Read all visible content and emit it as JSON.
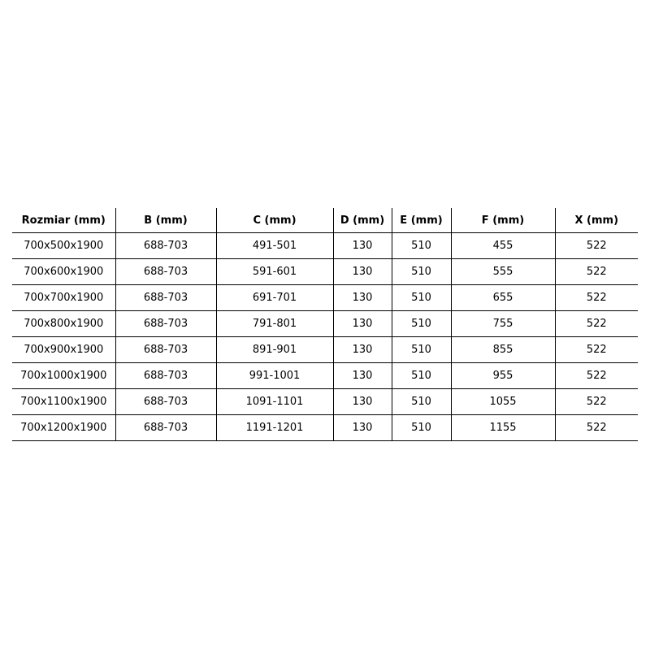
{
  "table": {
    "headers": [
      "Rozmiar (mm)",
      "B (mm)",
      "C (mm)",
      "D (mm)",
      "E (mm)",
      "F (mm)",
      "X (mm)"
    ],
    "rows": [
      [
        "700x500x1900",
        "688-703",
        "491-501",
        "130",
        "510",
        "455",
        "522"
      ],
      [
        "700x600x1900",
        "688-703",
        "591-601",
        "130",
        "510",
        "555",
        "522"
      ],
      [
        "700x700x1900",
        "688-703",
        "691-701",
        "130",
        "510",
        "655",
        "522"
      ],
      [
        "700x800x1900",
        "688-703",
        "791-801",
        "130",
        "510",
        "755",
        "522"
      ],
      [
        "700x900x1900",
        "688-703",
        "891-901",
        "130",
        "510",
        "855",
        "522"
      ],
      [
        "700x1000x1900",
        "688-703",
        "991-1001",
        "130",
        "510",
        "955",
        "522"
      ],
      [
        "700x1100x1900",
        "688-703",
        "1091-1101",
        "130",
        "510",
        "1055",
        "522"
      ],
      [
        "700x1200x1900",
        "688-703",
        "1191-1201",
        "130",
        "510",
        "1155",
        "522"
      ]
    ]
  }
}
